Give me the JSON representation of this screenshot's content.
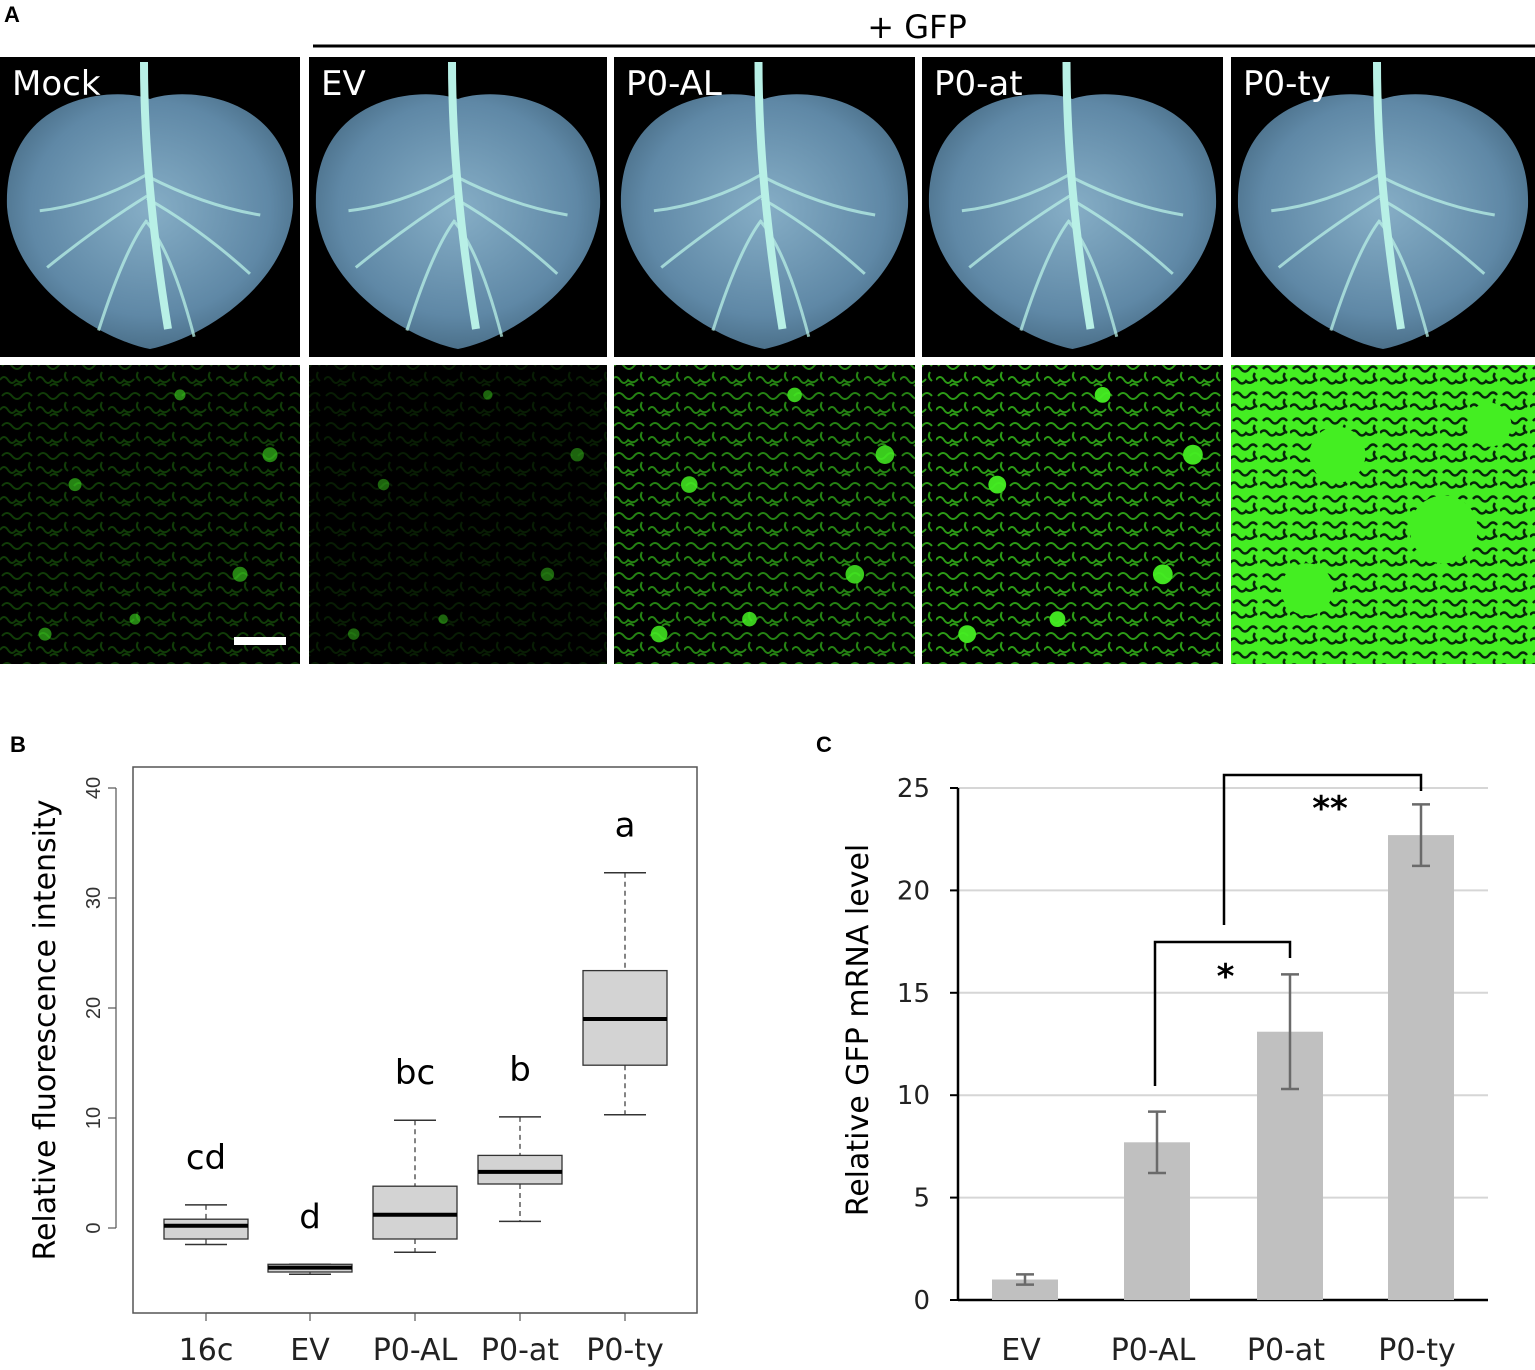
{
  "panel_a": {
    "letter": "A",
    "group_label": "+ GFP",
    "leaf_labels": [
      "Mock",
      "EV",
      "P0-AL",
      "P0-at",
      "P0-ty"
    ],
    "micro_brightness": [
      0.25,
      0.12,
      0.55,
      0.65,
      1.0
    ],
    "colors": {
      "leaf": "#6f97b3",
      "vein": "#b8f0e6",
      "gfp": "#44ee22",
      "background": "#000000"
    }
  },
  "panel_b": {
    "letter": "B"
  },
  "panel_c": {
    "letter": "C"
  },
  "chart_data": [
    {
      "type": "box",
      "ylabel": "Relative fluorescence intensity",
      "xlabel": "",
      "ylim": [
        -8,
        42
      ],
      "yticks": [
        "0",
        "10",
        "20",
        "30",
        "40"
      ],
      "categories": [
        "16c",
        "EV",
        "P0-AL",
        "P0-at",
        "P0-ty"
      ],
      "boxes": [
        {
          "whisker_low": -1.5,
          "q1": -1.0,
          "median": 0.2,
          "q3": 0.8,
          "whisker_high": 2.1
        },
        {
          "whisker_low": -4.2,
          "q1": -4.0,
          "median": -3.6,
          "q3": -3.3,
          "whisker_high": -3.3
        },
        {
          "whisker_low": -2.2,
          "q1": -1.0,
          "median": 1.2,
          "q3": 3.8,
          "whisker_high": 9.8
        },
        {
          "whisker_low": 0.6,
          "q1": 4.0,
          "median": 5.1,
          "q3": 6.6,
          "whisker_high": 10.1
        },
        {
          "whisker_low": 10.3,
          "q1": 14.8,
          "median": 19.0,
          "q3": 23.4,
          "whisker_high": 32.3
        }
      ],
      "significance_letters": [
        "cd",
        "d",
        "bc",
        "b",
        "a"
      ],
      "box_fill": "#d3d3d3",
      "grid": false
    },
    {
      "type": "bar",
      "ylabel": "Relative GFP mRNA level",
      "xlabel": "",
      "ylim": [
        0,
        25
      ],
      "yticks": [
        "0",
        "5",
        "10",
        "15",
        "20",
        "25"
      ],
      "categories": [
        "EV",
        "P0-AL",
        "P0-at",
        "P0-ty"
      ],
      "values": [
        1.0,
        7.7,
        13.1,
        22.7
      ],
      "errors": [
        0.25,
        1.5,
        2.8,
        1.5
      ],
      "bar_color": "#c0c0c0",
      "grid": true,
      "significance": [
        {
          "from": "P0-AL",
          "to": "P0-at",
          "label": "*"
        },
        {
          "from": "P0-at",
          "to": "P0-ty",
          "label": "**"
        }
      ]
    }
  ]
}
